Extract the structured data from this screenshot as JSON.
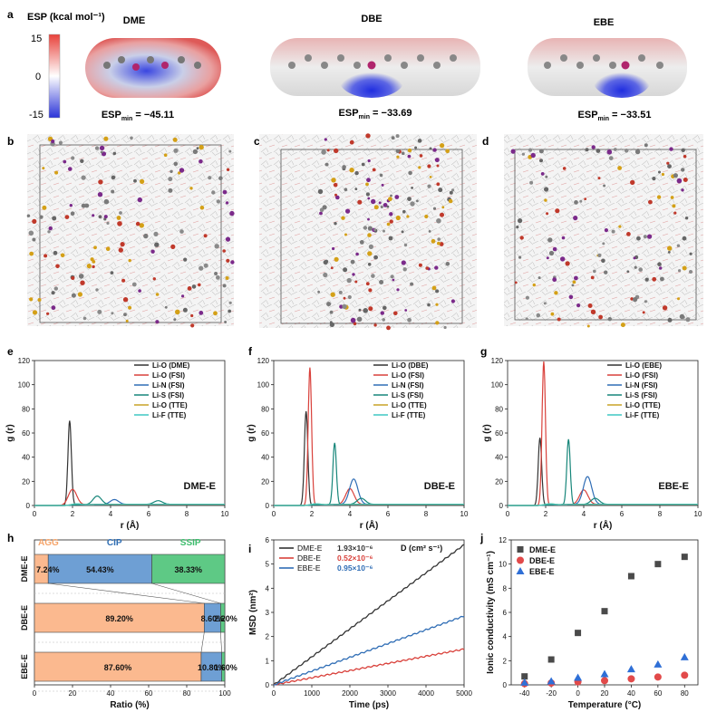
{
  "panel_letters": {
    "a": "a",
    "b": "b",
    "c": "c",
    "d": "d",
    "e": "e",
    "f": "f",
    "g": "g",
    "h": "h",
    "i": "i",
    "j": "j"
  },
  "esp": {
    "colorbar_title": "ESP (kcal mol⁻¹)",
    "ticks": [
      "15",
      "0",
      "-15"
    ],
    "colors": {
      "pos": "#e8413a",
      "zero": "#ffffff",
      "neg": "#2a33d8"
    },
    "molecules": [
      {
        "name": "DME",
        "esp_min_label": "ESP",
        "esp_min_sub": "min",
        "esp_min_value": " = −45.11"
      },
      {
        "name": "DBE",
        "esp_min_label": "ESP",
        "esp_min_sub": "min",
        "esp_min_value": " = −33.69"
      },
      {
        "name": "EBE",
        "esp_min_label": "ESP",
        "esp_min_sub": "min",
        "esp_min_value": " = −33.51"
      }
    ]
  },
  "chart_data": [
    {
      "panel": "e",
      "type": "line",
      "label": "DME-E",
      "xlabel": "r (Å)",
      "ylabel": "g (r)",
      "xlim": [
        0,
        10
      ],
      "ylim": [
        0,
        120
      ],
      "xticks": [
        "0",
        "2",
        "4",
        "6",
        "8",
        "10"
      ],
      "yticks": [
        "0",
        "20",
        "40",
        "60",
        "80",
        "100",
        "120"
      ],
      "legend_position": "top-right",
      "series": [
        {
          "name": "Li-O (DME)",
          "color": "#333333",
          "peaks": [
            [
              1.85,
              70
            ]
          ]
        },
        {
          "name": "Li-O (FSI)",
          "color": "#d9413b",
          "peaks": [
            [
              2.0,
              13
            ]
          ]
        },
        {
          "name": "Li-N (FSI)",
          "color": "#2f6db5",
          "peaks": [
            [
              4.2,
              4
            ]
          ]
        },
        {
          "name": "Li-S (FSI)",
          "color": "#17867a",
          "peaks": [
            [
              3.3,
              7
            ],
            [
              6.5,
              3
            ]
          ]
        },
        {
          "name": "Li-O (TTE)",
          "color": "#c9a227",
          "peaks": [
            [
              2.2,
              1
            ]
          ]
        },
        {
          "name": "Li-F (TTE)",
          "color": "#3fc7c2",
          "peaks": [
            [
              2.2,
              1
            ]
          ]
        }
      ]
    },
    {
      "panel": "f",
      "type": "line",
      "label": "DBE-E",
      "xlabel": "r (Å)",
      "ylabel": "g (r)",
      "xlim": [
        0,
        10
      ],
      "ylim": [
        0,
        120
      ],
      "xticks": [
        "0",
        "2",
        "4",
        "6",
        "8",
        "10"
      ],
      "yticks": [
        "0",
        "20",
        "40",
        "60",
        "80",
        "100",
        "120"
      ],
      "legend_position": "top-right",
      "series": [
        {
          "name": "Li-O (DBE)",
          "color": "#333333",
          "peaks": [
            [
              1.7,
              78
            ]
          ]
        },
        {
          "name": "Li-O (FSI)",
          "color": "#d9413b",
          "peaks": [
            [
              1.9,
              114
            ],
            [
              4.0,
              13
            ]
          ]
        },
        {
          "name": "Li-N (FSI)",
          "color": "#2f6db5",
          "peaks": [
            [
              4.2,
              21
            ]
          ]
        },
        {
          "name": "Li-S (FSI)",
          "color": "#17867a",
          "peaks": [
            [
              3.2,
              51
            ],
            [
              4.6,
              5
            ]
          ]
        },
        {
          "name": "Li-O (TTE)",
          "color": "#c9a227",
          "peaks": [
            [
              2.2,
              1
            ]
          ]
        },
        {
          "name": "Li-F (TTE)",
          "color": "#3fc7c2",
          "peaks": [
            [
              2.2,
              1
            ]
          ]
        }
      ]
    },
    {
      "panel": "g",
      "type": "line",
      "label": "EBE-E",
      "xlabel": "r (Å)",
      "ylabel": "g (r)",
      "xlim": [
        0,
        10
      ],
      "ylim": [
        0,
        120
      ],
      "xticks": [
        "0",
        "2",
        "4",
        "6",
        "8",
        "10"
      ],
      "yticks": [
        "0",
        "20",
        "40",
        "60",
        "80",
        "100",
        "120"
      ],
      "legend_position": "top-right",
      "series": [
        {
          "name": "Li-O (EBE)",
          "color": "#333333",
          "peaks": [
            [
              1.7,
              56
            ]
          ]
        },
        {
          "name": "Li-O (FSI)",
          "color": "#d9413b",
          "peaks": [
            [
              1.9,
              119
            ],
            [
              4.0,
              12
            ]
          ]
        },
        {
          "name": "Li-N (FSI)",
          "color": "#2f6db5",
          "peaks": [
            [
              4.2,
              23
            ]
          ]
        },
        {
          "name": "Li-S (FSI)",
          "color": "#17867a",
          "peaks": [
            [
              3.2,
              54
            ],
            [
              4.6,
              5
            ]
          ]
        },
        {
          "name": "Li-O (TTE)",
          "color": "#c9a227",
          "peaks": [
            [
              2.2,
              1
            ]
          ]
        },
        {
          "name": "Li-F (TTE)",
          "color": "#3fc7c2",
          "peaks": [
            [
              2.2,
              1
            ]
          ]
        }
      ]
    },
    {
      "panel": "h",
      "type": "bar",
      "orientation": "horizontal-stacked",
      "xlabel": "Ratio (%)",
      "xlim": [
        0,
        100
      ],
      "xticks": [
        "0",
        "20",
        "40",
        "60",
        "80",
        "100"
      ],
      "headers": [
        {
          "name": "AGG",
          "color": "#f6a56b"
        },
        {
          "name": "CIP",
          "color": "#2e6db3"
        },
        {
          "name": "SSIP",
          "color": "#3dbd6d"
        }
      ],
      "categories": [
        "DME-E",
        "DBE-E",
        "EBE-E"
      ],
      "series": [
        {
          "name": "AGG",
          "color": "#fbb98f",
          "values": [
            7.24,
            89.2,
            87.6
          ],
          "labels": [
            "7.24%",
            "89.20%",
            "87.60%"
          ]
        },
        {
          "name": "CIP",
          "color": "#6e9fd4",
          "values": [
            54.43,
            8.6,
            10.8
          ],
          "labels": [
            "54.43%",
            "8.60%",
            "10.80%"
          ]
        },
        {
          "name": "SSIP",
          "color": "#5ec985",
          "values": [
            38.33,
            2.2,
            1.6
          ],
          "labels": [
            "38.33%",
            "2.20%",
            "1.60%"
          ]
        }
      ]
    },
    {
      "panel": "i",
      "type": "line",
      "xlabel": "Time (ps)",
      "ylabel": "MSD (nm²)",
      "xlim": [
        0,
        5000
      ],
      "ylim": [
        0,
        6
      ],
      "xticks": [
        "0",
        "1000",
        "2000",
        "3000",
        "4000",
        "5000"
      ],
      "yticks": [
        "0",
        "1",
        "2",
        "3",
        "4",
        "5",
        "6"
      ],
      "legend_title": "D (cm² s⁻¹)",
      "legend_position": "top-left",
      "series": [
        {
          "name": "DME-E",
          "value_label": "1.93×10⁻⁶",
          "color": "#333333",
          "x": [
            0,
            5000
          ],
          "y": [
            0,
            5.8
          ]
        },
        {
          "name": "DBE-E",
          "value_label": "0.52×10⁻⁶",
          "color": "#d9413b",
          "x": [
            0,
            5000
          ],
          "y": [
            0,
            1.48
          ]
        },
        {
          "name": "EBE-E",
          "value_label": "0.95×10⁻⁶",
          "color": "#2f6db5",
          "x": [
            0,
            5000
          ],
          "y": [
            0,
            2.85
          ]
        }
      ]
    },
    {
      "panel": "j",
      "type": "scatter",
      "xlabel": "Temperature (°C)",
      "ylabel": "Ionic conductivity (mS cm⁻¹)",
      "xlim": [
        -50,
        90
      ],
      "ylim": [
        0,
        12
      ],
      "xticks": [
        "-40",
        "-20",
        "0",
        "20",
        "40",
        "60",
        "80"
      ],
      "yticks": [
        "0",
        "2",
        "4",
        "6",
        "8",
        "10",
        "12"
      ],
      "legend_position": "top-left",
      "x": [
        -40,
        -20,
        0,
        20,
        40,
        60,
        80
      ],
      "series": [
        {
          "name": "DME-E",
          "color": "#4a4a4a",
          "marker": "square",
          "values": [
            0.7,
            2.1,
            4.3,
            6.1,
            9.0,
            10.0,
            10.6
          ]
        },
        {
          "name": "DBE-E",
          "color": "#e24a4a",
          "marker": "circle",
          "values": [
            0.1,
            0.15,
            0.25,
            0.35,
            0.5,
            0.65,
            0.8
          ]
        },
        {
          "name": "EBE-E",
          "color": "#2f6fd6",
          "marker": "triangle",
          "values": [
            0.2,
            0.3,
            0.6,
            0.9,
            1.3,
            1.7,
            2.3
          ]
        }
      ]
    }
  ]
}
